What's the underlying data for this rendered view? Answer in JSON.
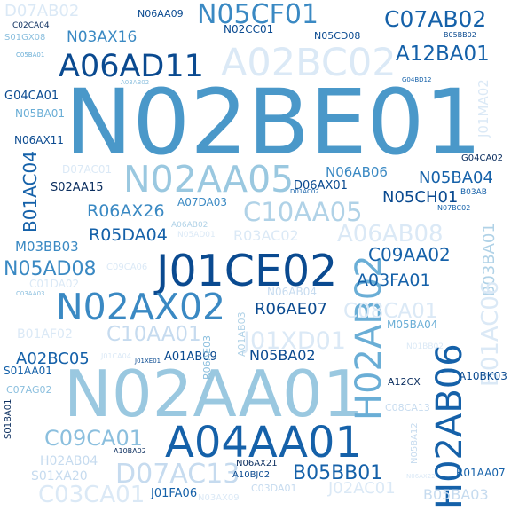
{
  "words": [
    {
      "text": "N02BE01",
      "color": "#4a98c9"
    },
    {
      "text": "N02AA01",
      "color": "#9ac8e0"
    },
    {
      "text": "A04AA01",
      "color": "#1561a9"
    },
    {
      "text": "J01CE02",
      "color": "#0a4a90"
    },
    {
      "text": "N02AA05",
      "color": "#9ac8e0"
    },
    {
      "text": "A02BC02",
      "color": "#dbe9f6"
    },
    {
      "text": "N02AX02",
      "color": "#3a89c3"
    },
    {
      "text": "A06AD11",
      "color": "#0a4a90"
    },
    {
      "text": "N05CF01",
      "color": "#3a89c3"
    },
    {
      "text": "C10AA05",
      "color": "#b0d2e7"
    },
    {
      "text": "H02AB02",
      "color": "#6aaed6"
    },
    {
      "text": "H02AB06",
      "color": "#1561a9"
    },
    {
      "text": "D07AC13",
      "color": "#c6dbef"
    },
    {
      "text": "B05BB01",
      "color": "#1561a9"
    },
    {
      "text": "J01XD01",
      "color": "#dbe9f6"
    },
    {
      "text": "C03CA01",
      "color": "#dbe9f6"
    },
    {
      "text": "C09CA01",
      "color": "#8bbfde"
    },
    {
      "text": "A06AB08",
      "color": "#dbe9f6"
    },
    {
      "text": "C08CA01",
      "color": "#dbe9f6"
    },
    {
      "text": "C10AA01",
      "color": "#c6dbef"
    },
    {
      "text": "C07AB02",
      "color": "#1561a9"
    },
    {
      "text": "A12BA01",
      "color": "#1561a9"
    },
    {
      "text": "N05AD08",
      "color": "#3a89c3"
    },
    {
      "text": "R06AX26",
      "color": "#3a89c3"
    },
    {
      "text": "R05DA04",
      "color": "#1561a9"
    },
    {
      "text": "C09AA02",
      "color": "#1561a9"
    },
    {
      "text": "A03FA01",
      "color": "#1561a9"
    },
    {
      "text": "R06AE07",
      "color": "#0a4a90"
    },
    {
      "text": "N05CH01",
      "color": "#0a4a90"
    },
    {
      "text": "N05BA04",
      "color": "#1561a9"
    },
    {
      "text": "A02BC05",
      "color": "#1561a9"
    },
    {
      "text": "N05BA02",
      "color": "#0a4a90"
    },
    {
      "text": "J02AC01",
      "color": "#dbe9f6"
    },
    {
      "text": "B05BA03",
      "color": "#c6dbef"
    },
    {
      "text": "D07AB02",
      "color": "#dbe9f6"
    },
    {
      "text": "N03AX16",
      "color": "#3a89c3"
    },
    {
      "text": "B01AC04",
      "color": "#1561a9"
    },
    {
      "text": "B03BA01",
      "color": "#b0d2e7"
    },
    {
      "text": "B01AC06",
      "color": "#dbe9f6"
    },
    {
      "text": "R03AC02",
      "color": "#dbe9f6"
    },
    {
      "text": "M03BB03",
      "color": "#3a89c3"
    },
    {
      "text": "C01DA02",
      "color": "#dbe9f6"
    },
    {
      "text": "S02AA15",
      "color": "#0a2d5e"
    },
    {
      "text": "N06AB06",
      "color": "#3a89c3"
    },
    {
      "text": "N06AX11",
      "color": "#0a4a90"
    },
    {
      "text": "G04CA01",
      "color": "#0a4a90"
    },
    {
      "text": "N05BA01",
      "color": "#6aaed6"
    },
    {
      "text": "D07AC01",
      "color": "#dbe9f6"
    },
    {
      "text": "D06AX01",
      "color": "#0a4a90"
    },
    {
      "text": "A07DA03",
      "color": "#3a89c3"
    },
    {
      "text": "J01MA02",
      "color": "#dbe9f6"
    },
    {
      "text": "G04CA02",
      "color": "#0a2d5e"
    },
    {
      "text": "B03AB",
      "color": "#1561a9"
    },
    {
      "text": "N07BC02",
      "color": "#1561a9"
    },
    {
      "text": "M05BA04",
      "color": "#6aaed6"
    },
    {
      "text": "N06AB04",
      "color": "#c6dbef"
    },
    {
      "text": "B01AF02",
      "color": "#dbe9f6"
    },
    {
      "text": "A01AB09",
      "color": "#0a4a90"
    },
    {
      "text": "S01AA01",
      "color": "#1561a9"
    },
    {
      "text": "C07AG02",
      "color": "#8bbfde"
    },
    {
      "text": "S01BA01",
      "color": "#0a2d5e"
    },
    {
      "text": "A12CX",
      "color": "#0a2d5e"
    },
    {
      "text": "A10BK03",
      "color": "#0a4a90"
    },
    {
      "text": "C08CA13",
      "color": "#c6dbef"
    },
    {
      "text": "N05BA12",
      "color": "#c6dbef"
    },
    {
      "text": "R01AA07",
      "color": "#1561a9"
    },
    {
      "text": "H02AB04",
      "color": "#c6dbef"
    },
    {
      "text": "S01XA20",
      "color": "#c6dbef"
    },
    {
      "text": "J01FA06",
      "color": "#1561a9"
    },
    {
      "text": "N03AX09",
      "color": "#dbe9f6"
    },
    {
      "text": "C03DA01",
      "color": "#c6dbef"
    },
    {
      "text": "N06AX21",
      "color": "#0a2d5e"
    },
    {
      "text": "A10BJ02",
      "color": "#0a4a90"
    },
    {
      "text": "A10BA02",
      "color": "#0a2d5e"
    },
    {
      "text": "N06AA09",
      "color": "#0a4a90"
    },
    {
      "text": "N02CC01",
      "color": "#0a4a90"
    },
    {
      "text": "N05CD08",
      "color": "#0a4a90"
    },
    {
      "text": "B05BB02",
      "color": "#0a4a90"
    },
    {
      "text": "C02CA04",
      "color": "#0a2d5e"
    },
    {
      "text": "S01GX08",
      "color": "#8bbfde"
    },
    {
      "text": "C05BA01",
      "color": "#6aaed6"
    },
    {
      "text": "A03AB02",
      "color": "#8bbfde"
    },
    {
      "text": "G04BD12",
      "color": "#1561a9"
    },
    {
      "text": "D01AC02",
      "color": "#1561a9"
    },
    {
      "text": "A06AB02",
      "color": "#b0d2e7"
    },
    {
      "text": "N05AD01",
      "color": "#dbe9f6"
    },
    {
      "text": "C09CA06",
      "color": "#dbe9f6"
    },
    {
      "text": "C03AA03",
      "color": "#8bbfde"
    },
    {
      "text": "A01AB03",
      "color": "#b0d2e7"
    },
    {
      "text": "R06AE03",
      "color": "#8bbfde"
    },
    {
      "text": "J01CA04",
      "color": "#dbe9f6"
    },
    {
      "text": "J01XE01",
      "color": "#0a4a90"
    },
    {
      "text": "N01BB02",
      "color": "#dbe9f6"
    },
    {
      "text": "N06AX22",
      "color": "#dbe9f6"
    }
  ]
}
